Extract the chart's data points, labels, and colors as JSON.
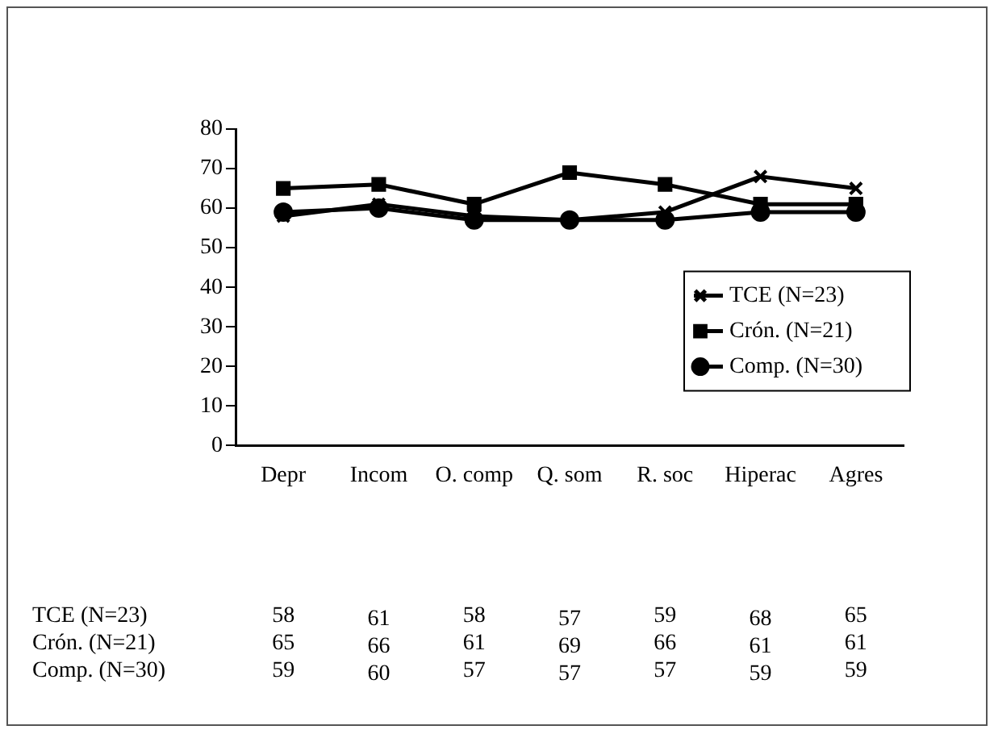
{
  "chart_data": {
    "type": "line",
    "categories": [
      "Depr",
      "Incom",
      "O. comp",
      "Q. som",
      "R. soc",
      "Hiperac",
      "Agres"
    ],
    "series": [
      {
        "name": "TCE (N=23)",
        "color": "#000000",
        "marker": "cross",
        "values": [
          58,
          61,
          58,
          57,
          59,
          68,
          65
        ]
      },
      {
        "name": "Crón. (N=21)",
        "color": "#000000",
        "marker": "square",
        "values": [
          65,
          66,
          61,
          69,
          66,
          61,
          61
        ]
      },
      {
        "name": "Comp. (N=30)",
        "color": "#000000",
        "marker": "circle",
        "values": [
          59,
          60,
          57,
          57,
          57,
          59,
          59
        ]
      }
    ],
    "ylim": [
      0,
      80
    ],
    "yticks": [
      0,
      10,
      20,
      30,
      40,
      50,
      60,
      70,
      80
    ],
    "grid": false,
    "legend": "right",
    "data_labels": true,
    "line_style": "solid"
  }
}
